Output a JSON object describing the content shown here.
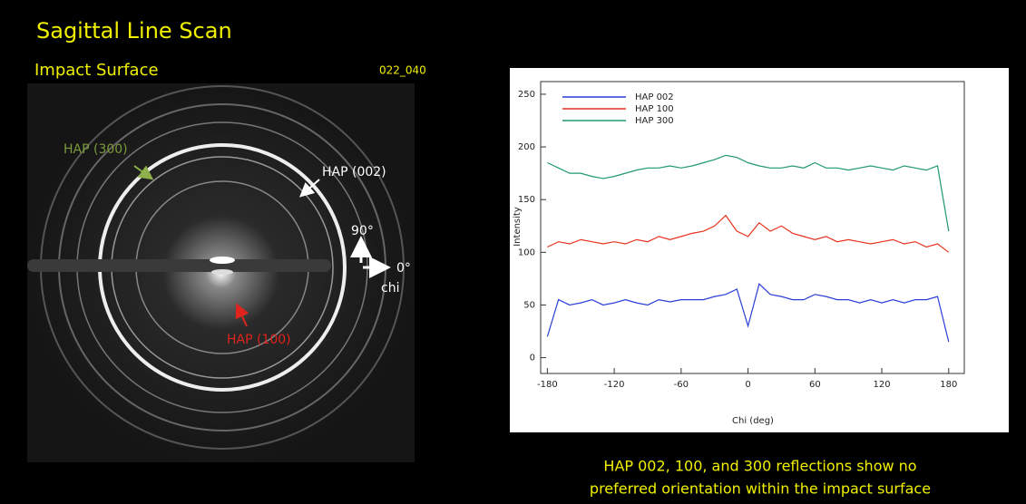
{
  "slide": {
    "title": "Sagittal Line Scan",
    "subtitle": "Impact Surface",
    "code": "022_040",
    "annotations": {
      "hap300": "HAP (300)",
      "hap002": "HAP (002)",
      "hap100": "HAP (100)",
      "deg90": "90°",
      "deg0": "0°",
      "chi": "chi"
    }
  },
  "caption": {
    "lines": [
      "HAP 002, 100, and 300 reflections show no",
      "preferred orientation within the impact surface"
    ]
  },
  "chart_data": {
    "type": "line",
    "x_label": "Chi (deg)",
    "y_label": "Intensity",
    "x": [
      -180,
      -170,
      -160,
      -150,
      -140,
      -130,
      -120,
      -110,
      -100,
      -90,
      -80,
      -70,
      -60,
      -50,
      -40,
      -30,
      -20,
      -10,
      0,
      10,
      20,
      30,
      40,
      50,
      60,
      70,
      80,
      90,
      100,
      110,
      120,
      130,
      140,
      150,
      160,
      170,
      180
    ],
    "series": [
      {
        "name": "HAP 002",
        "color": "#2a3fd6",
        "values": [
          20,
          55,
          50,
          52,
          55,
          50,
          52,
          55,
          52,
          50,
          55,
          53,
          55,
          55,
          55,
          58,
          60,
          65,
          30,
          70,
          60,
          58,
          55,
          55,
          60,
          58,
          55,
          55,
          52,
          55,
          52,
          55,
          52,
          55,
          55,
          58,
          15
        ]
      },
      {
        "name": "HAP 100",
        "color": "#e8321e",
        "values": [
          105,
          110,
          108,
          112,
          110,
          108,
          110,
          108,
          112,
          110,
          115,
          112,
          115,
          118,
          120,
          125,
          135,
          120,
          115,
          128,
          120,
          125,
          118,
          115,
          112,
          115,
          110,
          112,
          110,
          108,
          110,
          112,
          108,
          110,
          105,
          108,
          100
        ]
      },
      {
        "name": "HAP 300",
        "color": "#1f9a6a",
        "values": [
          185,
          180,
          175,
          175,
          172,
          170,
          172,
          175,
          178,
          180,
          180,
          182,
          180,
          182,
          185,
          188,
          192,
          190,
          185,
          182,
          180,
          180,
          182,
          180,
          185,
          180,
          180,
          178,
          180,
          182,
          180,
          178,
          182,
          180,
          178,
          182,
          120
        ]
      }
    ],
    "xlim": [
      -186,
      194
    ],
    "ylim": [
      -15,
      262
    ],
    "xticks": [
      -180,
      -120,
      -60,
      0,
      60,
      120,
      180
    ],
    "yticks": [
      0,
      50,
      100,
      150,
      200,
      250
    ],
    "legend": "upper-left"
  }
}
